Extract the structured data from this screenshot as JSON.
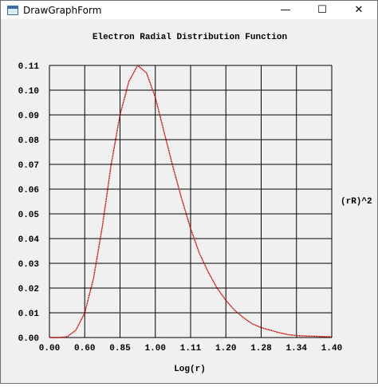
{
  "window": {
    "title": "DrawGraphForm",
    "buttons": {
      "minimize": "—",
      "maximize": "☐",
      "close": "✕"
    }
  },
  "chart_data": {
    "type": "line",
    "title": "Electron Radial Distribution Function",
    "xlabel": "Log(r)",
    "ylabel": "(rR)^2",
    "x_tick_labels": [
      "0.00",
      "0.60",
      "0.85",
      "1.00",
      "1.11",
      "1.20",
      "1.28",
      "1.34",
      "1.40"
    ],
    "y_tick_labels": [
      "0.00",
      "0.01",
      "0.02",
      "0.03",
      "0.04",
      "0.05",
      "0.06",
      "0.07",
      "0.08",
      "0.09",
      "0.10",
      "0.11"
    ],
    "ylim": [
      0,
      0.11
    ],
    "grid": true,
    "line_color": "#c00000",
    "series": [
      {
        "x_index": [
          0.0,
          0.25,
          0.5,
          0.75,
          1.0,
          1.25,
          1.5,
          1.75,
          2.0,
          2.25,
          2.5,
          2.75,
          3.0,
          3.25,
          3.5,
          3.75,
          4.0,
          4.25,
          4.5,
          4.75,
          5.0,
          5.25,
          5.5,
          5.75,
          6.0,
          6.25,
          6.5,
          6.75,
          7.0,
          7.25,
          7.5,
          7.75,
          8.0
        ],
        "values": [
          0.0,
          0.0,
          0.0003,
          0.003,
          0.01,
          0.024,
          0.045,
          0.07,
          0.09,
          0.1035,
          0.11,
          0.107,
          0.097,
          0.083,
          0.069,
          0.056,
          0.044,
          0.034,
          0.0265,
          0.02,
          0.015,
          0.011,
          0.008,
          0.0055,
          0.004,
          0.003,
          0.002,
          0.0012,
          0.0008,
          0.0006,
          0.0005,
          0.0004,
          0.0003
        ]
      }
    ]
  }
}
